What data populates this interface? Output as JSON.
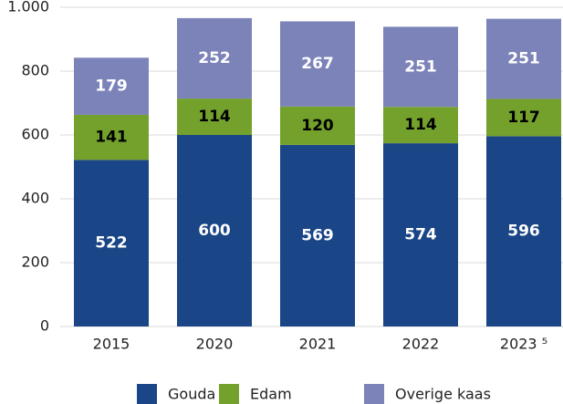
{
  "chart_data": {
    "type": "stacked_bar",
    "categories": [
      "2015",
      "2020",
      "2021",
      "2022",
      "2023 ⁵"
    ],
    "series": [
      {
        "name": "Gouda",
        "color": "#1a4586",
        "label_color": "#ffffff",
        "values": [
          522,
          600,
          569,
          574,
          596
        ]
      },
      {
        "name": "Edam",
        "color": "#73a12c",
        "label_color": "#000000",
        "values": [
          141,
          114,
          120,
          114,
          117
        ]
      },
      {
        "name": "Overige kaas",
        "color": "#7c83b9",
        "label_color": "#ffffff",
        "values": [
          179,
          252,
          267,
          251,
          251
        ]
      }
    ],
    "ylim": [
      0,
      1000
    ],
    "yticks": [
      0,
      200,
      400,
      600,
      800,
      {
        "value": 1000,
        "label": "1.000"
      }
    ],
    "grid": true,
    "legend": "bottom"
  }
}
